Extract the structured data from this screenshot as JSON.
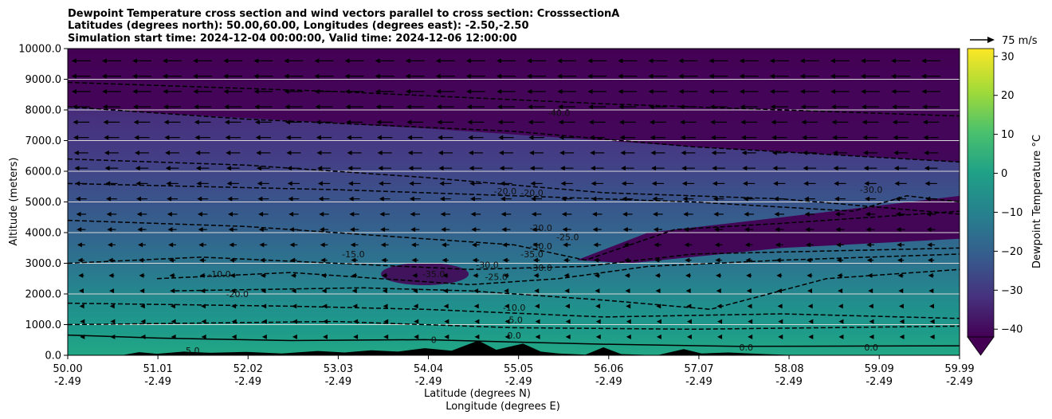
{
  "chart_data": {
    "type": "contourf",
    "title_lines": [
      "Dewpoint Temperature cross section and wind vectors parallel to cross section: CrosssectionA",
      "Latitudes (degrees north): 50.00,60.00, Longitudes (degrees east): -2.50,-2.50",
      "Simulation start time: 2024-12-04 00:00:00, Valid time: 2024-12-06 12:00:00"
    ],
    "xlabel_lines": [
      "Latitude (degrees N)",
      "Longitude (degrees E)"
    ],
    "ylabel": "Altitude (meters)",
    "x_ticks": [
      {
        "lat": 50.0,
        "lat_label": "50.00",
        "lon_label": "-2.49"
      },
      {
        "lat": 51.01,
        "lat_label": "51.01",
        "lon_label": "-2.49"
      },
      {
        "lat": 52.02,
        "lat_label": "52.02",
        "lon_label": "-2.49"
      },
      {
        "lat": 53.03,
        "lat_label": "53.03",
        "lon_label": "-2.49"
      },
      {
        "lat": 54.04,
        "lat_label": "54.04",
        "lon_label": "-2.49"
      },
      {
        "lat": 55.05,
        "lat_label": "55.05",
        "lon_label": "-2.49"
      },
      {
        "lat": 56.06,
        "lat_label": "56.06",
        "lon_label": "-2.49"
      },
      {
        "lat": 57.07,
        "lat_label": "57.07",
        "lon_label": "-2.49"
      },
      {
        "lat": 58.08,
        "lat_label": "58.08",
        "lon_label": "-2.49"
      },
      {
        "lat": 59.09,
        "lat_label": "59.09",
        "lon_label": "-2.49"
      },
      {
        "lat": 59.99,
        "lat_label": "59.99",
        "lon_label": "-2.49"
      }
    ],
    "xlim": [
      50.0,
      59.99
    ],
    "y_ticks": [
      0,
      1000,
      2000,
      3000,
      4000,
      5000,
      6000,
      7000,
      8000,
      9000,
      10000
    ],
    "y_tick_labels": [
      "0.0",
      "1000.0",
      "2000.0",
      "3000.0",
      "4000.0",
      "5000.0",
      "6000.0",
      "7000.0",
      "8000.0",
      "9000.0",
      "10000.0"
    ],
    "ylim": [
      0,
      10000
    ],
    "grid": "horizontal",
    "colorbar": {
      "label": "Dewpoint Temperature $^\\circ$C",
      "label_text": "Dewpoint Temperature",
      "label_unit": "°C",
      "range": [
        -42,
        32
      ],
      "extend": "min",
      "ticks": [
        -40,
        -30,
        -20,
        -10,
        0,
        10,
        20,
        30
      ],
      "tick_labels": [
        "−40",
        "−30",
        "−20",
        "−10",
        "0",
        "10",
        "20",
        "30"
      ],
      "colormap": "viridis"
    },
    "quiver_key": {
      "label": "75 m/s",
      "value": 75
    },
    "contour_levels": [
      -40,
      -35,
      -30,
      -25,
      -20,
      -15,
      -10,
      -5,
      0
    ],
    "contour_labels": [
      {
        "text": "-40.0",
        "lat": 55.5,
        "alt": 7800
      },
      {
        "text": "-20.0",
        "lat": 54.9,
        "alt": 5250
      },
      {
        "text": "-20.0",
        "lat": 55.2,
        "alt": 5200
      },
      {
        "text": "-30.0",
        "lat": 59.0,
        "alt": 5300
      },
      {
        "text": "-20.0",
        "lat": 55.3,
        "alt": 4050
      },
      {
        "text": "-25.0",
        "lat": 55.6,
        "alt": 3750
      },
      {
        "text": "-30.0",
        "lat": 55.3,
        "alt": 3450
      },
      {
        "text": "-35.0",
        "lat": 55.2,
        "alt": 3200
      },
      {
        "text": "-30.0",
        "lat": 55.3,
        "alt": 2750
      },
      {
        "text": "-15.0",
        "lat": 53.2,
        "alt": 3200
      },
      {
        "text": "-30.0",
        "lat": 54.7,
        "alt": 2850
      },
      {
        "text": "-25.0",
        "lat": 54.8,
        "alt": 2450
      },
      {
        "text": "-35.0",
        "lat": 54.1,
        "alt": 2550
      },
      {
        "text": "-10.0",
        "lat": 51.7,
        "alt": 2550
      },
      {
        "text": "-20.0",
        "lat": 51.9,
        "alt": 1900
      },
      {
        "text": "-10.0",
        "lat": 55.0,
        "alt": 1450
      },
      {
        "text": "-5.0",
        "lat": 55.0,
        "alt": 1050
      },
      {
        "text": "0.0",
        "lat": 55.0,
        "alt": 550
      },
      {
        "text": "5.0",
        "lat": 51.4,
        "alt": 50
      },
      {
        "text": "0",
        "lat": 54.1,
        "alt": 400
      },
      {
        "text": "0.0",
        "lat": 57.6,
        "alt": 150
      },
      {
        "text": "0.0",
        "lat": 59.0,
        "alt": 150
      }
    ],
    "field_description": {
      "surface": "about 5 to 10 at low levels",
      "dry_layer": "below -40 above about 7500 m and in a tongue 3000-5000 m north of 55.7N"
    },
    "terrain": [
      {
        "lat": 50.0,
        "alt": 0
      },
      {
        "lat": 50.6,
        "alt": 0
      },
      {
        "lat": 50.8,
        "alt": 100
      },
      {
        "lat": 51.0,
        "alt": 50
      },
      {
        "lat": 51.3,
        "alt": 120
      },
      {
        "lat": 51.6,
        "alt": 80
      },
      {
        "lat": 52.0,
        "alt": 110
      },
      {
        "lat": 52.4,
        "alt": 60
      },
      {
        "lat": 52.8,
        "alt": 140
      },
      {
        "lat": 53.1,
        "alt": 90
      },
      {
        "lat": 53.4,
        "alt": 160
      },
      {
        "lat": 53.7,
        "alt": 120
      },
      {
        "lat": 54.0,
        "alt": 230
      },
      {
        "lat": 54.3,
        "alt": 150
      },
      {
        "lat": 54.6,
        "alt": 480
      },
      {
        "lat": 54.8,
        "alt": 180
      },
      {
        "lat": 55.1,
        "alt": 380
      },
      {
        "lat": 55.3,
        "alt": 120
      },
      {
        "lat": 55.5,
        "alt": 60
      },
      {
        "lat": 55.8,
        "alt": 20
      },
      {
        "lat": 56.0,
        "alt": 260
      },
      {
        "lat": 56.2,
        "alt": 40
      },
      {
        "lat": 56.6,
        "alt": 0
      },
      {
        "lat": 56.9,
        "alt": 200
      },
      {
        "lat": 57.1,
        "alt": 60
      },
      {
        "lat": 57.4,
        "alt": 90
      },
      {
        "lat": 57.8,
        "alt": 40
      },
      {
        "lat": 58.2,
        "alt": 0
      },
      {
        "lat": 59.99,
        "alt": 0
      }
    ]
  }
}
